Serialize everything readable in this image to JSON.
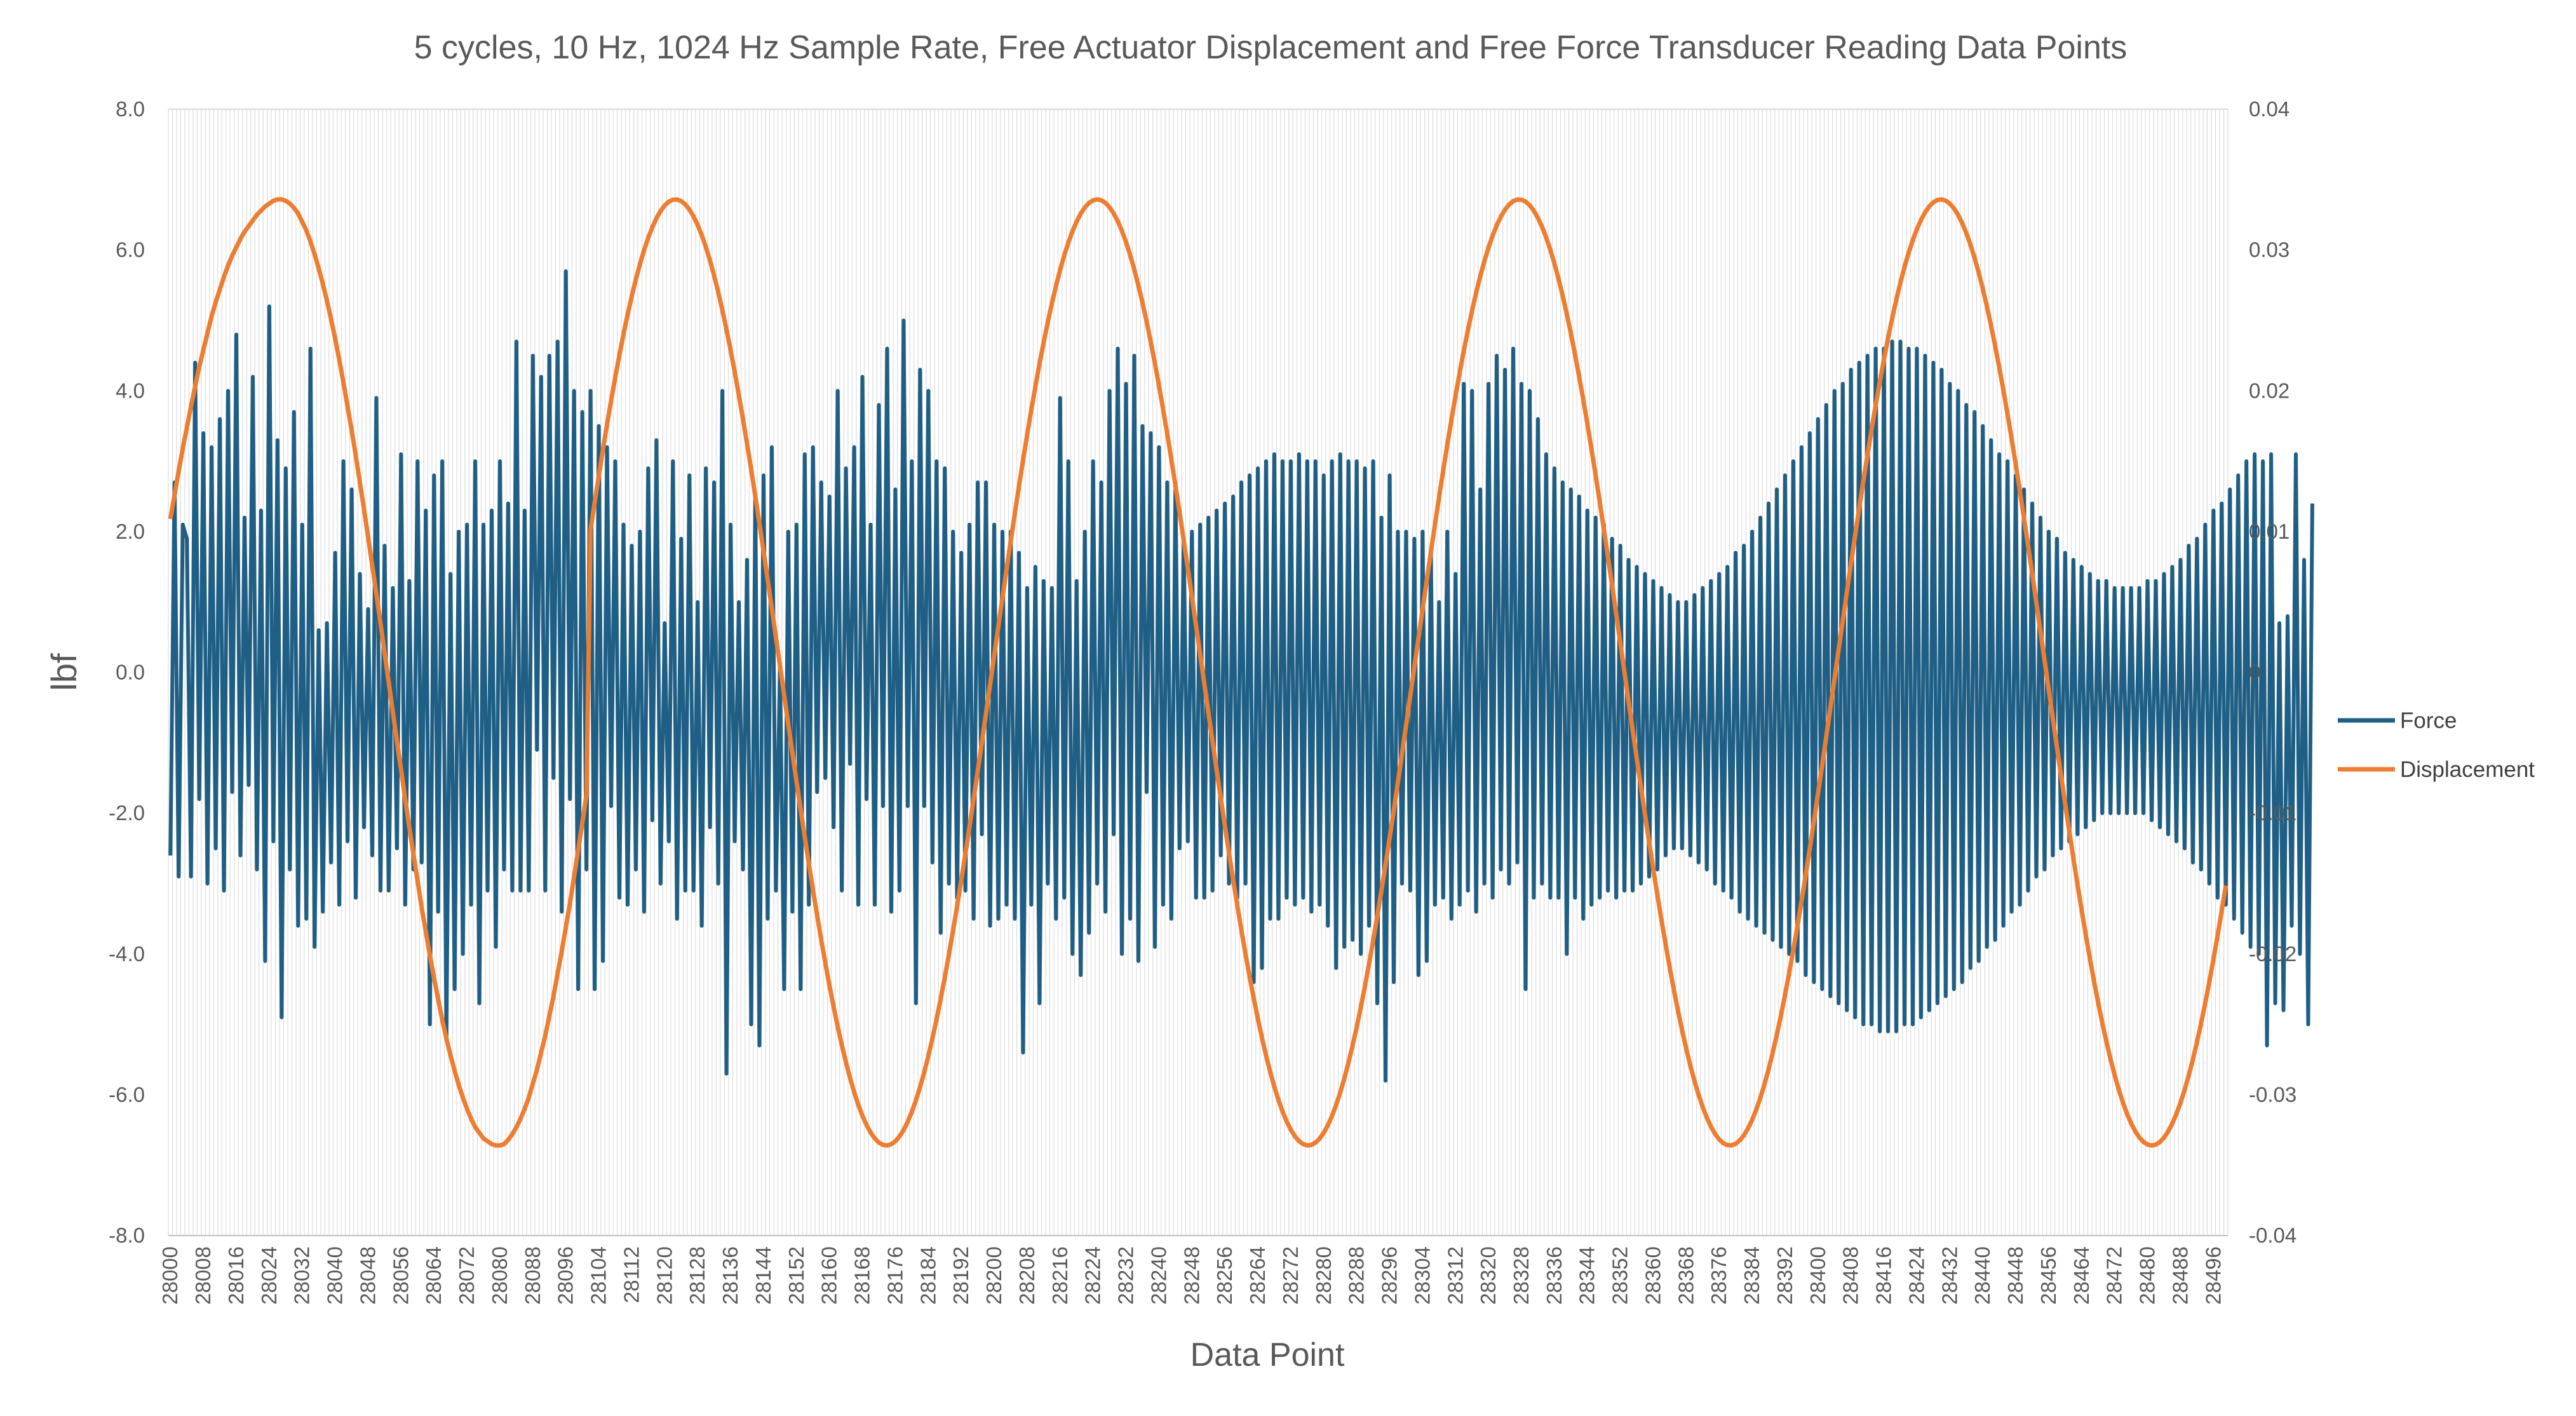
{
  "chart_data": {
    "type": "line",
    "title": "5 cycles, 10 Hz, 1024 Hz Sample Rate, Free Actuator Displacement and Free Force Transducer Reading Data Points",
    "xlabel": "Data Point",
    "ylabel": "lbf",
    "y2label": "",
    "x_range": [
      28000,
      28499
    ],
    "x_tick_labels": [
      "28000",
      "28008",
      "28016",
      "28024",
      "28032",
      "28040",
      "28048",
      "28056",
      "28064",
      "28072",
      "28080",
      "28088",
      "28096",
      "28104",
      "28112",
      "28120",
      "28128",
      "28136",
      "28144",
      "28152",
      "28160",
      "28168",
      "28176",
      "28184",
      "28192",
      "28200",
      "28208",
      "28216",
      "28224",
      "28232",
      "28240",
      "28248",
      "28256",
      "28264",
      "28272",
      "28280",
      "28288",
      "28296",
      "28304",
      "28312",
      "28320",
      "28328",
      "28336",
      "28344",
      "28352",
      "28360",
      "28368",
      "28376",
      "28384",
      "28392",
      "28400",
      "28408",
      "28416",
      "28424",
      "28432",
      "28440",
      "28448",
      "28456",
      "28464",
      "28472",
      "28480",
      "28488",
      "28496"
    ],
    "ylim": [
      -8,
      8
    ],
    "y_tick_labels": [
      "8.0",
      "6.0",
      "4.0",
      "2.0",
      "0.0",
      "-2.0",
      "-4.0",
      "-6.0",
      "-8.0"
    ],
    "y2lim": [
      -0.04,
      0.04
    ],
    "y2_tick_labels": [
      "0.04",
      "0.03",
      "0.02",
      "0.01",
      "0",
      "-0.01",
      "-0.02",
      "-0.03",
      "-0.04"
    ],
    "grid": "vertical",
    "legend_position": "right",
    "series": [
      {
        "name": "Force",
        "axis": "left",
        "color": "#1f5f85",
        "x_start": 28000,
        "values": [
          -2.6,
          2.7,
          -2.9,
          2.1,
          1.9,
          -2.9,
          4.4,
          -1.8,
          3.4,
          -3.0,
          3.2,
          -2.5,
          3.6,
          -3.1,
          4.0,
          -1.7,
          4.8,
          -2.6,
          2.2,
          -1.6,
          4.2,
          -2.8,
          2.3,
          -4.1,
          5.2,
          -2.4,
          3.3,
          -4.9,
          2.9,
          -2.8,
          3.7,
          -3.6,
          2.1,
          -3.5,
          4.6,
          -3.9,
          0.6,
          -3.4,
          0.7,
          -2.7,
          1.7,
          -3.3,
          3.0,
          -2.4,
          2.6,
          -3.2,
          1.4,
          -2.2,
          0.9,
          -2.6,
          3.9,
          -3.1,
          1.8,
          -3.1,
          1.2,
          -2.5,
          3.1,
          -3.3,
          1.3,
          -2.8,
          3.0,
          -2.7,
          2.3,
          -5.0,
          2.8,
          -3.4,
          3.0,
          -5.2,
          1.4,
          -4.5,
          2.0,
          -4.0,
          2.1,
          -3.3,
          3.0,
          -4.7,
          2.1,
          -3.1,
          2.3,
          -3.9,
          3.0,
          -2.8,
          2.4,
          -3.1,
          4.7,
          -3.1,
          2.3,
          -3.1,
          4.5,
          -1.1,
          4.2,
          -3.1,
          4.5,
          -1.5,
          4.7,
          -3.4,
          5.7,
          -1.8,
          4.0,
          -4.5,
          3.7,
          -2.8,
          4.0,
          -4.5,
          3.5,
          -4.1,
          3.2,
          -1.9,
          3.0,
          -3.2,
          2.1,
          -3.3,
          1.8,
          -2.8,
          2.0,
          -3.4,
          2.9,
          -2.1,
          3.3,
          -3.0,
          0.7,
          -2.4,
          3.0,
          -3.5,
          1.9,
          -3.1,
          2.8,
          -3.1,
          1.0,
          -3.6,
          2.9,
          -2.2,
          2.7,
          -3.0,
          4.0,
          -5.7,
          2.1,
          -2.4,
          1.0,
          -2.8,
          1.6,
          -5.0,
          2.5,
          -5.3,
          2.8,
          -3.5,
          3.2,
          -3.1,
          0.1,
          -4.5,
          2.0,
          -3.4,
          2.1,
          -4.5,
          3.1,
          -3.3,
          3.2,
          -1.7,
          2.7,
          -1.5,
          2.5,
          -2.2,
          4.0,
          -3.1,
          2.9,
          -1.3,
          3.2,
          -3.3,
          4.2,
          -1.8,
          2.1,
          -3.3,
          3.8,
          -1.9,
          4.6,
          -3.4,
          2.6,
          -3.1,
          5.0,
          -1.9,
          3.0,
          -4.7,
          4.3,
          -1.9,
          4.0,
          -2.7,
          3.0,
          -3.7,
          2.9,
          -3.0,
          2.0,
          -3.2,
          1.7,
          -3.1,
          2.1,
          -3.5,
          2.7,
          -2.3,
          2.7,
          -3.6,
          2.1,
          -3.5,
          2.0,
          -3.3,
          2.0,
          -3.5,
          1.7,
          -5.4,
          1.2,
          -3.3,
          1.5,
          -4.7,
          1.3,
          -3.0,
          1.2,
          -3.5,
          3.9,
          -3.2,
          3.0,
          -4.0,
          1.3,
          -4.3,
          2.0,
          -3.7,
          3.0,
          -3.0,
          2.7,
          -3.4,
          4.0,
          -2.3,
          4.6,
          -4.0,
          4.1,
          -3.5,
          4.5,
          -4.1,
          3.5,
          -1.7,
          3.4,
          -3.9,
          3.2,
          -3.3,
          2.7,
          -3.5,
          2.6,
          -2.5,
          1.9,
          -2.4,
          2.0,
          -3.2,
          2.1,
          -3.2,
          2.2,
          -3.1,
          2.3,
          -2.6,
          2.4,
          -3.0,
          2.5,
          -3.2,
          2.7,
          -3.0,
          2.8,
          -4.4,
          2.9,
          -4.2,
          3.0,
          -3.5,
          3.1,
          -3.5,
          3.0,
          -3.2,
          3.0,
          -3.3,
          3.1,
          -3.2,
          3.0,
          -3.4,
          3.0,
          -3.3,
          2.8,
          -3.6,
          3.0,
          -4.2,
          3.1,
          -3.9,
          3.0,
          -3.8,
          3.0,
          -4.0,
          2.9,
          -3.6,
          3.0,
          -4.7,
          2.2,
          -5.8,
          2.8,
          -4.4,
          2.0,
          -3.0,
          2.0,
          -3.1,
          1.9,
          -4.3,
          2.0,
          -4.1,
          1.7,
          -3.3,
          1.0,
          -3.2,
          2.0,
          -3.5,
          1.4,
          -3.3,
          4.1,
          -3.1,
          4.0,
          -3.4,
          2.6,
          -3.0,
          4.1,
          -3.2,
          4.5,
          -2.8,
          4.3,
          -3.0,
          4.6,
          -2.7,
          4.1,
          -4.5,
          4.0,
          -3.2,
          3.6,
          -3.0,
          3.1,
          -3.2,
          2.9,
          -3.2,
          2.7,
          -4.0,
          2.6,
          -3.2,
          2.5,
          -3.5,
          2.3,
          -3.3,
          2.2,
          -3.2,
          2.1,
          -3.1,
          1.9,
          -3.2,
          1.8,
          -3.1,
          1.6,
          -3.1,
          1.5,
          -3.0,
          1.4,
          -2.9,
          1.3,
          -2.8,
          1.2,
          -2.6,
          1.1,
          -2.5,
          1.0,
          -2.5,
          1.0,
          -2.6,
          1.1,
          -2.7,
          1.2,
          -2.8,
          1.3,
          -3.0,
          1.4,
          -3.1,
          1.5,
          -3.2,
          1.7,
          -3.4,
          1.8,
          -3.5,
          2.0,
          -3.6,
          2.2,
          -3.7,
          2.4,
          -3.8,
          2.6,
          -3.9,
          2.8,
          -4.0,
          3.0,
          -4.1,
          3.2,
          -4.3,
          3.4,
          -4.4,
          3.6,
          -4.5,
          3.8,
          -4.6,
          4.0,
          -4.7,
          4.1,
          -4.8,
          4.3,
          -4.9,
          4.4,
          -5.0,
          4.5,
          -5.0,
          4.6,
          -5.1,
          4.6,
          -5.1,
          4.7,
          -5.1,
          4.7,
          -5.0,
          4.6,
          -5.0,
          4.6,
          -4.9,
          4.5,
          -4.8,
          4.4,
          -4.7,
          4.3,
          -4.6,
          4.1,
          -4.5,
          4.0,
          -4.4,
          3.8,
          -4.2,
          3.7,
          -4.1,
          3.5,
          -3.9,
          3.3,
          -3.8,
          3.1,
          -3.6,
          3.0,
          -3.4,
          2.8,
          -3.3,
          2.6,
          -3.1,
          2.4,
          -2.9,
          2.2,
          -2.8,
          2.0,
          -2.6,
          1.9,
          -2.5,
          1.7,
          -2.4,
          1.6,
          -2.3,
          1.5,
          -2.2,
          1.4,
          -2.1,
          1.3,
          -2.0,
          1.3,
          -2.0,
          1.2,
          -2.0,
          1.2,
          -2.0,
          1.2,
          -2.0,
          1.2,
          -2.0,
          1.3,
          -2.1,
          1.3,
          -2.2,
          1.4,
          -2.3,
          1.5,
          -2.4,
          1.6,
          -2.5,
          1.8,
          -2.7,
          1.9,
          -2.8,
          2.1,
          -3.0,
          2.3,
          -3.2,
          2.4,
          -3.3,
          2.6,
          -3.5,
          2.8,
          -3.7,
          3.0,
          -3.9,
          3.1,
          -4.0,
          3.0,
          -5.3,
          3.1,
          -4.7,
          0.7,
          -4.8,
          0.8,
          -3.6,
          3.1,
          -4.0,
          1.6,
          -5.0,
          2.4
        ]
      },
      {
        "name": "Displacement",
        "axis": "right",
        "color": "#ed7d31",
        "x_start": 28000,
        "amplitude": 0.0336,
        "period_points": 102.4,
        "values": [
          0.0109,
          0.0126,
          0.0143,
          0.0159,
          0.0174,
          0.0189,
          0.0203,
          0.0217,
          0.0229,
          0.0241,
          0.0253,
          0.0263,
          0.0272,
          0.0281,
          0.0289,
          0.0296,
          0.0302,
          0.0308,
          0.0313,
          0.0317,
          0.0321,
          0.0325,
          0.0328,
          0.0331,
          0.0333,
          0.0335,
          0.0336,
          0.0336,
          0.0335,
          0.0333,
          0.033,
          0.0326,
          0.032,
          0.0314,
          0.0306,
          0.0297,
          0.0287,
          0.0276,
          0.0264,
          0.0251,
          0.0237,
          0.0222,
          0.0206,
          0.0189,
          0.0172,
          0.0154,
          0.0135,
          0.0116,
          0.0096,
          0.0076,
          0.0056,
          0.0035,
          0.0014,
          -0.0007,
          -0.0028,
          -0.0049,
          -0.0069,
          -0.009,
          -0.011,
          -0.0129,
          -0.0148,
          -0.0167,
          -0.0184,
          -0.0201,
          -0.0217,
          -0.0232,
          -0.0247,
          -0.026,
          -0.0272,
          -0.0283,
          -0.0293,
          -0.0302,
          -0.031,
          -0.0317,
          -0.0323,
          -0.0327,
          -0.0331,
          -0.0333,
          -0.0335,
          -0.0336,
          -0.0336,
          -0.0335,
          -0.0332,
          -0.0328,
          -0.0323,
          -0.0317,
          -0.031,
          -0.0302,
          -0.0292,
          -0.0282,
          -0.027,
          -0.0258,
          -0.0244,
          -0.023,
          -0.0214,
          -0.0198,
          -0.0181,
          -0.0164,
          -0.0145,
          -0.0126,
          -0.0107,
          -0.0087
        ]
      }
    ]
  }
}
